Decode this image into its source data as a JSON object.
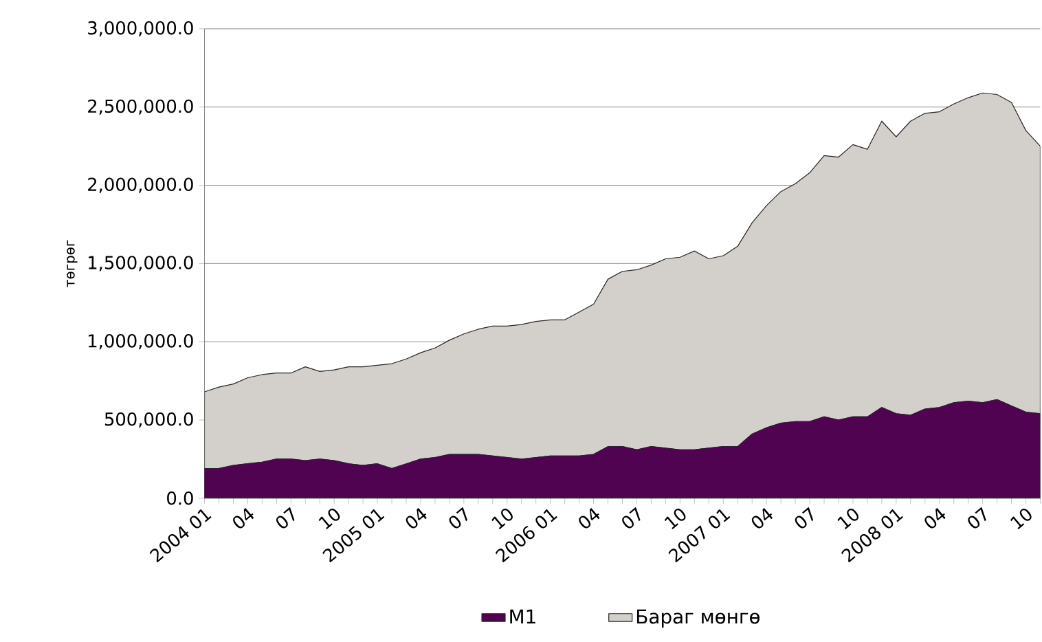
{
  "chart_data": {
    "type": "area",
    "stacked": true,
    "ylabel": "төгрөг",
    "categories": [
      "2004 01",
      null,
      null,
      "04",
      null,
      null,
      "07",
      null,
      null,
      "10",
      null,
      null,
      "2005 01",
      null,
      null,
      "04",
      null,
      null,
      "07",
      null,
      null,
      "10",
      null,
      null,
      "2006 01",
      null,
      null,
      "04",
      null,
      null,
      "07",
      null,
      null,
      "10",
      null,
      null,
      "2007 01",
      null,
      null,
      "04",
      null,
      null,
      "07",
      null,
      null,
      "10",
      null,
      null,
      "2008 01",
      null,
      null,
      "04",
      null,
      null,
      "07",
      null,
      null,
      "10",
      null
    ],
    "series": [
      {
        "name": "М1",
        "color": "#4f0350",
        "values": [
          190000,
          190000,
          210000,
          220000,
          230000,
          250000,
          250000,
          240000,
          250000,
          240000,
          220000,
          210000,
          220000,
          190000,
          220000,
          250000,
          260000,
          280000,
          280000,
          280000,
          270000,
          260000,
          250000,
          260000,
          270000,
          270000,
          270000,
          280000,
          330000,
          330000,
          310000,
          330000,
          320000,
          310000,
          310000,
          320000,
          330000,
          330000,
          410000,
          450000,
          480000,
          490000,
          490000,
          520000,
          500000,
          520000,
          520000,
          580000,
          540000,
          530000,
          570000,
          580000,
          610000,
          620000,
          610000,
          630000,
          590000,
          550000,
          540000
        ]
      },
      {
        "name": "Бараг мөнгө",
        "color": "#d3cfca",
        "values": [
          490000,
          520000,
          520000,
          550000,
          560000,
          550000,
          550000,
          600000,
          560000,
          580000,
          620000,
          630000,
          630000,
          670000,
          670000,
          680000,
          700000,
          730000,
          770000,
          800000,
          830000,
          840000,
          860000,
          870000,
          870000,
          870000,
          920000,
          960000,
          1070000,
          1120000,
          1150000,
          1160000,
          1210000,
          1230000,
          1270000,
          1210000,
          1220000,
          1280000,
          1350000,
          1420000,
          1480000,
          1520000,
          1590000,
          1670000,
          1680000,
          1740000,
          1710000,
          1830000,
          1770000,
          1880000,
          1890000,
          1890000,
          1910000,
          1940000,
          1980000,
          1950000,
          1940000,
          1800000,
          1710000
        ]
      }
    ],
    "ylim": [
      0,
      3000000
    ],
    "yticks": [
      {
        "value": 0,
        "label": "0.0"
      },
      {
        "value": 500000,
        "label": "500,000.0"
      },
      {
        "value": 1000000,
        "label": "1,000,000.0"
      },
      {
        "value": 1500000,
        "label": "1,500,000.0"
      },
      {
        "value": 2000000,
        "label": "2,000,000.0"
      },
      {
        "value": 2500000,
        "label": "2,500,000.0"
      },
      {
        "value": 3000000,
        "label": "3,000,000.0"
      }
    ],
    "grid": "y",
    "legend": "bottom"
  }
}
